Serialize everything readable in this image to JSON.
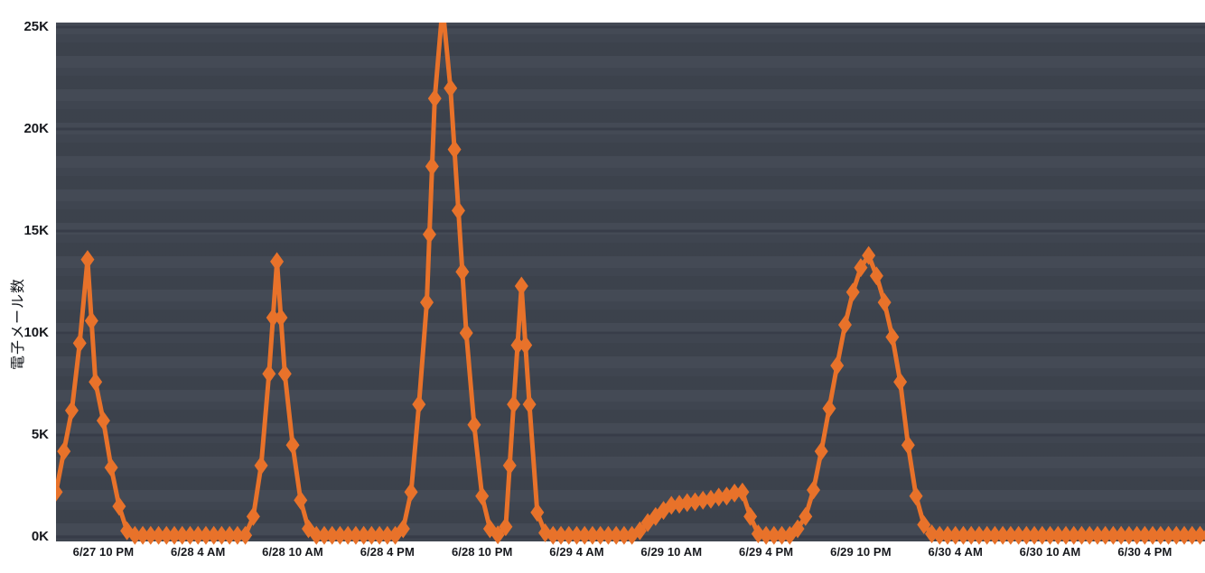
{
  "chart_data": {
    "type": "line",
    "title": "",
    "xlabel": "",
    "ylabel": "電子メール数",
    "legend": "none",
    "grid": "horizontal",
    "marker": "diamond",
    "ylim": [
      0,
      25
    ],
    "unit": "K",
    "x_start_label": "6/27 7:00 PM",
    "interval_minutes": 30,
    "y_ticks": [
      {
        "value": 0,
        "label": "0K"
      },
      {
        "value": 5,
        "label": "5K"
      },
      {
        "value": 10,
        "label": "10K"
      },
      {
        "value": 15,
        "label": "15K"
      },
      {
        "value": 20,
        "label": "20K"
      },
      {
        "value": 25,
        "label": "25K"
      }
    ],
    "x_tick_indices": [
      6,
      18,
      30,
      42,
      54,
      66,
      78,
      90,
      102,
      114,
      126,
      138
    ],
    "x_tick_labels": [
      "6/27 10 PM",
      "6/28 4 AM",
      "6/28 10 AM",
      "6/28 4 PM",
      "6/28 10 PM",
      "6/29 4 AM",
      "6/29 10 AM",
      "6/29 4 PM",
      "6/29 10 PM",
      "6/30 4 AM",
      "6/30 10 AM",
      "6/30 4 PM"
    ],
    "values_k": [
      2.2,
      4.2,
      6.2,
      9.5,
      13.6,
      7.6,
      5.7,
      3.4,
      1.5,
      0.3,
      0.08,
      0.08,
      0.08,
      0.08,
      0.08,
      0.08,
      0.08,
      0.08,
      0.08,
      0.08,
      0.08,
      0.08,
      0.08,
      0.08,
      0.08,
      1.0,
      3.5,
      8.0,
      13.5,
      8.0,
      4.5,
      1.8,
      0.4,
      0.08,
      0.08,
      0.08,
      0.08,
      0.08,
      0.08,
      0.08,
      0.08,
      0.08,
      0.08,
      0.08,
      0.4,
      2.2,
      6.5,
      11.5,
      21.5,
      26.0,
      22.0,
      16.0,
      10.0,
      5.5,
      2.0,
      0.4,
      0.1,
      0.5,
      6.5,
      12.3,
      6.5,
      1.2,
      0.2,
      0.08,
      0.08,
      0.08,
      0.08,
      0.08,
      0.08,
      0.08,
      0.08,
      0.08,
      0.08,
      0.08,
      0.3,
      0.7,
      1.0,
      1.3,
      1.55,
      1.6,
      1.68,
      1.72,
      1.8,
      1.85,
      1.95,
      2.0,
      2.15,
      2.2,
      1.0,
      0.15,
      0.08,
      0.08,
      0.08,
      0.08,
      0.4,
      1.0,
      2.3,
      4.2,
      6.3,
      8.4,
      10.4,
      12.0,
      13.2,
      13.8,
      12.8,
      11.5,
      9.8,
      7.6,
      4.5,
      2.0,
      0.6,
      0.15,
      0.08,
      0.08,
      0.08,
      0.08,
      0.08,
      0.08,
      0.08,
      0.08,
      0.08,
      0.08,
      0.08,
      0.08,
      0.08,
      0.08,
      0.08,
      0.08,
      0.08,
      0.08,
      0.08,
      0.08,
      0.08,
      0.08,
      0.08,
      0.08,
      0.08,
      0.08,
      0.08,
      0.08,
      0.08,
      0.08,
      0.08,
      0.08,
      0.08,
      0.08,
      0.08
    ],
    "colors": {
      "line": "#E8722A",
      "plot_background": "#3F4550",
      "gridline": "#363B47",
      "axis_text": "#16181D"
    }
  }
}
